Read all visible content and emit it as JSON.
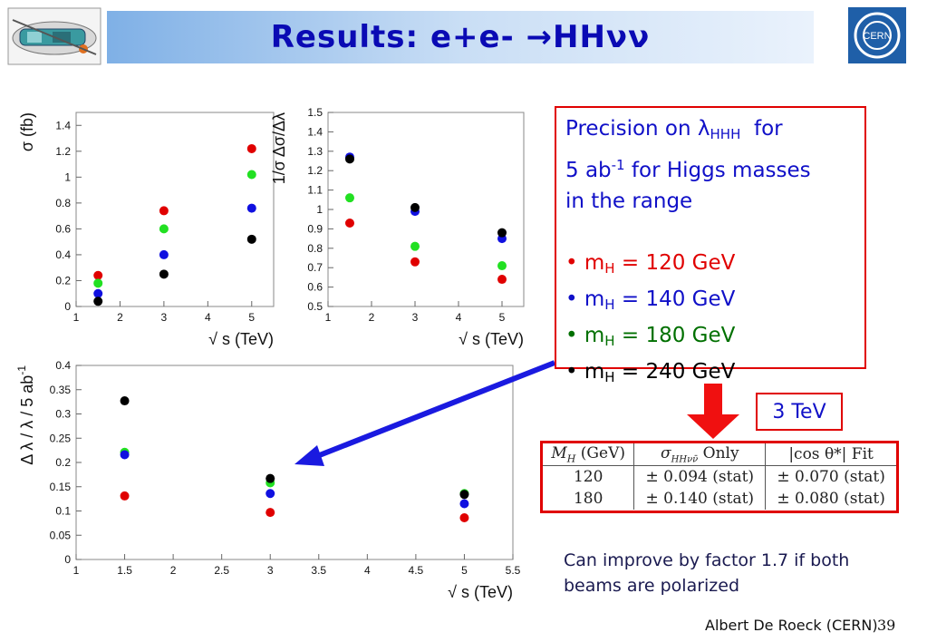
{
  "header": {
    "title": "Results: e+e- →HHνν"
  },
  "info_box": {
    "line1": "Precision on λ",
    "line1_sub": "HHH",
    "line1_end": "  for",
    "line2_pre": "5 ab",
    "line2_sup": "-1",
    "line2_post": " for Higgs masses",
    "line3": "in the range",
    "masses": [
      {
        "bullet": "•",
        "label": "m",
        "sub": "H",
        "value": " = 120 GeV",
        "color": "#e00000"
      },
      {
        "bullet": "•",
        "label": "m",
        "sub": "H",
        "value": " = 140 GeV",
        "color": "#1010c8"
      },
      {
        "bullet": "•",
        "label": "m",
        "sub": "H",
        "value": " = 180 GeV",
        "color": "#007000"
      },
      {
        "bullet": "•",
        "label": "m",
        "sub": "H",
        "value": " = 240 GeV",
        "color": "#000000"
      }
    ]
  },
  "energy_box": {
    "label": "3 TeV"
  },
  "table": {
    "headers": [
      "M_H (GeV)",
      "σ_HHνν̄ Only",
      "|cos θ*| Fit"
    ],
    "h1": "M",
    "h1_sub": "H",
    "h1_end": " (GeV)",
    "h2": "σ",
    "h2_sub": "HHνν̄",
    "h2_end": " Only",
    "h3": "|cos θ*| Fit",
    "rows": [
      {
        "mass": "120",
        "sigma": "± 0.094 (stat)",
        "cos": "± 0.070 (stat)"
      },
      {
        "mass": "180",
        "sigma": "± 0.140 (stat)",
        "cos": "± 0.080 (stat)"
      }
    ]
  },
  "note": "Can improve by factor 1.7 if both beams are polarized",
  "footer": {
    "author": "Albert De Roeck (CERN)",
    "page": "39"
  },
  "colors": {
    "m120": "#e00000",
    "m140": "#1010c8",
    "m180": "#22e022",
    "m240": "#000000",
    "title": "#0a0ab4",
    "box": "#e00000",
    "arrow": "#1a1ae0"
  },
  "chart_data": [
    {
      "id": "sigma",
      "type": "scatter",
      "xlabel": "√ s (TeV)",
      "ylabel": "σ (fb)",
      "xlim": [
        1,
        5.5
      ],
      "ylim": [
        0,
        1.5
      ],
      "xticks": [
        1,
        2,
        3,
        4,
        5
      ],
      "yticks": [
        0,
        0.2,
        0.4,
        0.6,
        0.8,
        1,
        1.2,
        1.4
      ],
      "series": [
        {
          "color": "#e00000",
          "x": [
            1.5,
            3,
            5
          ],
          "y": [
            0.24,
            0.74,
            1.22
          ]
        },
        {
          "color": "#22e022",
          "x": [
            1.5,
            3,
            5
          ],
          "y": [
            0.18,
            0.6,
            1.02
          ]
        },
        {
          "color": "#1010e0",
          "x": [
            1.5,
            3,
            5
          ],
          "y": [
            0.1,
            0.4,
            0.76
          ]
        },
        {
          "color": "#000000",
          "x": [
            1.5,
            3,
            5
          ],
          "y": [
            0.04,
            0.25,
            0.52
          ]
        }
      ]
    },
    {
      "id": "ratio",
      "type": "scatter",
      "xlabel": "√ s (TeV)",
      "ylabel": "1/σ Δσ/Δλ",
      "xlim": [
        1,
        5.5
      ],
      "ylim": [
        0.5,
        1.5
      ],
      "xticks": [
        1,
        2,
        3,
        4,
        5
      ],
      "yticks": [
        0.5,
        0.6,
        0.7,
        0.8,
        0.9,
        1,
        1.1,
        1.2,
        1.3,
        1.4,
        1.5
      ],
      "series": [
        {
          "color": "#e00000",
          "x": [
            1.5,
            3,
            5
          ],
          "y": [
            0.93,
            0.73,
            0.64
          ]
        },
        {
          "color": "#22e022",
          "x": [
            1.5,
            3,
            5
          ],
          "y": [
            1.06,
            0.81,
            0.71
          ]
        },
        {
          "color": "#1010e0",
          "x": [
            1.5,
            3,
            5
          ],
          "y": [
            1.27,
            0.99,
            0.85
          ]
        },
        {
          "color": "#000000",
          "x": [
            1.5,
            3,
            5
          ],
          "y": [
            1.26,
            1.01,
            0.88
          ]
        }
      ]
    },
    {
      "id": "precision",
      "type": "scatter",
      "xlabel": "√ s (TeV)",
      "ylabel": "Δ λ / λ / 5 ab",
      "ylabel_sup": "-1",
      "xlim": [
        1,
        5.5
      ],
      "ylim": [
        0,
        0.4
      ],
      "xticks": [
        1,
        1.5,
        2,
        2.5,
        3,
        3.5,
        4,
        4.5,
        5,
        5.5
      ],
      "yticks": [
        0,
        0.05,
        0.1,
        0.15,
        0.2,
        0.25,
        0.3,
        0.35,
        0.4
      ],
      "series": [
        {
          "color": "#e00000",
          "x": [
            1.5,
            3,
            5
          ],
          "y": [
            0.131,
            0.097,
            0.086
          ]
        },
        {
          "color": "#22e022",
          "x": [
            1.5,
            3,
            5
          ],
          "y": [
            0.221,
            0.158,
            0.136
          ]
        },
        {
          "color": "#1010e0",
          "x": [
            1.5,
            3,
            5
          ],
          "y": [
            0.216,
            0.136,
            0.115
          ]
        },
        {
          "color": "#000000",
          "x": [
            1.5,
            3,
            5
          ],
          "y": [
            0.327,
            0.167,
            0.134
          ]
        }
      ]
    }
  ]
}
